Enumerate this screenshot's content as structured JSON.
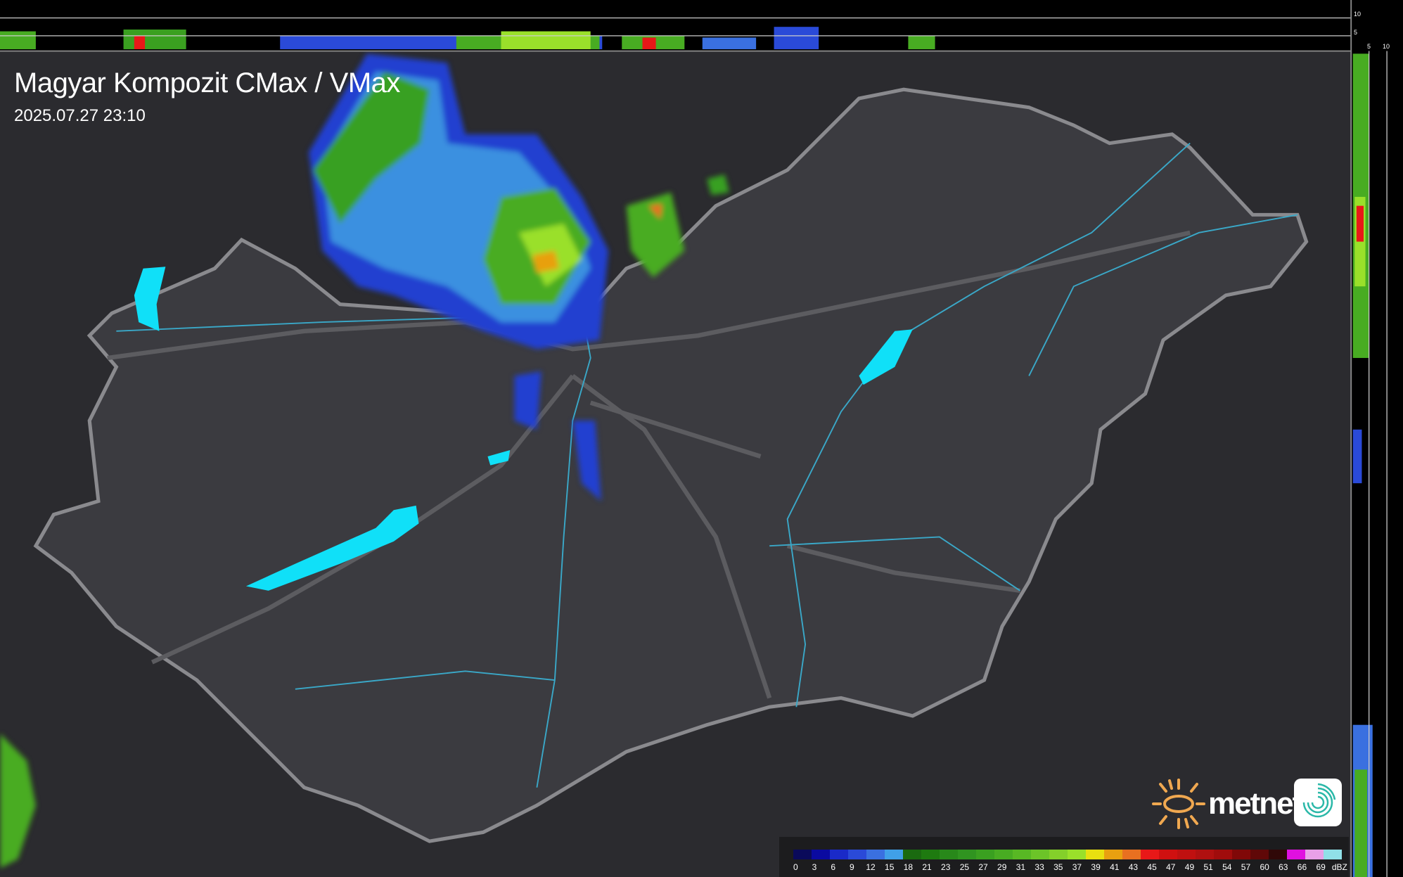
{
  "header": {
    "title": "Magyar Kompozit CMax / VMax",
    "timestamp": "2025.07.27 23:10"
  },
  "profile_scales": {
    "top_ticks": [
      "10",
      "5"
    ],
    "right_ticks": [
      "5",
      "10"
    ]
  },
  "legend": {
    "unit": "dBZ",
    "labels": [
      "0",
      "3",
      "6",
      "9",
      "12",
      "15",
      "18",
      "21",
      "23",
      "25",
      "27",
      "29",
      "31",
      "33",
      "35",
      "37",
      "39",
      "41",
      "43",
      "45",
      "47",
      "49",
      "51",
      "54",
      "57",
      "60",
      "63",
      "66",
      "69"
    ],
    "colors": [
      "#0a0a5a",
      "#0a0aa0",
      "#1a2ac8",
      "#2a4ad8",
      "#3a70e0",
      "#40a0e8",
      "#1a6a10",
      "#1e7a10",
      "#28881a",
      "#309420",
      "#3aa020",
      "#48ac22",
      "#58b824",
      "#6cc428",
      "#84d02a",
      "#9ae02a",
      "#e8e010",
      "#e8a010",
      "#e87020",
      "#e81818",
      "#d01010",
      "#c01010",
      "#b01010",
      "#a00c0c",
      "#800808",
      "#600808",
      "#300808",
      "#e010e0",
      "#e8a0e8",
      "#90e0e8"
    ]
  },
  "branding": {
    "logo_text": "metnet",
    "accent_color": "#f0a850"
  },
  "colors": {
    "background": "#2a2a2e",
    "country_fill": "#3a3a3e",
    "border": "#7a7a7e",
    "rivers": "#3aa8c8",
    "lakes": "#10e0f8"
  }
}
